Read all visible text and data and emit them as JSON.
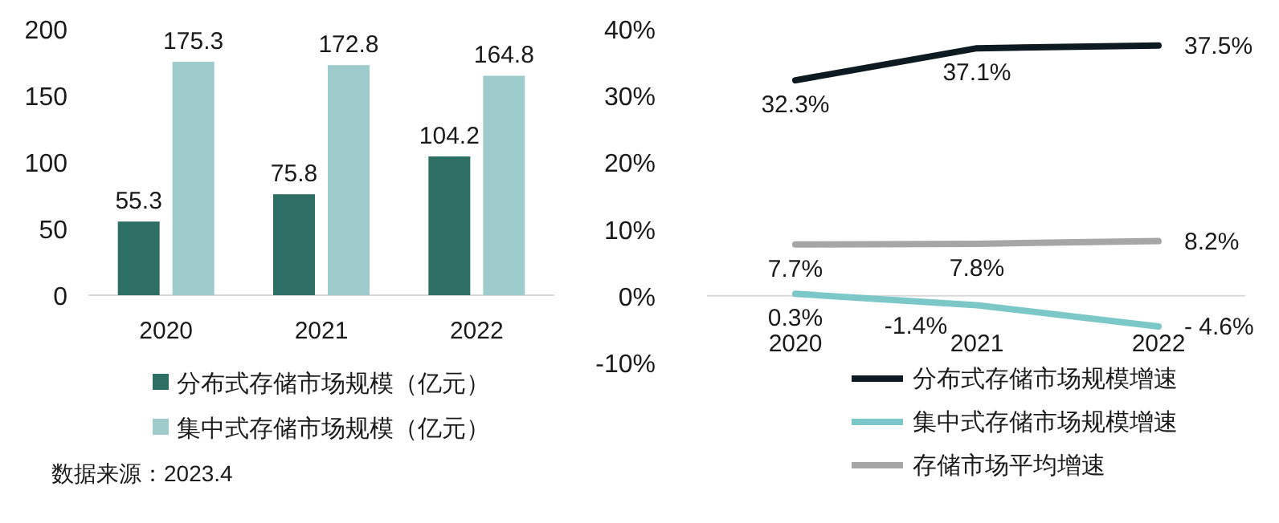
{
  "chart_data": [
    {
      "type": "bar",
      "categories": [
        "2020",
        "2021",
        "2022"
      ],
      "series": [
        {
          "name": "分布式存储市场规模（亿元）",
          "color": "#2e6f65",
          "values": [
            55.3,
            75.8,
            104.2
          ]
        },
        {
          "name": "集中式存储市场规模（亿元）",
          "color": "#9ecbcb",
          "values": [
            175.3,
            172.8,
            164.8
          ]
        }
      ],
      "ylim": [
        0,
        200
      ],
      "yticks": [
        0,
        50,
        100,
        150,
        200
      ],
      "data_labels": true,
      "legend": "bottom",
      "grid": false,
      "annotations": [
        "数据来源：2023.4"
      ]
    },
    {
      "type": "line",
      "categories": [
        "2020",
        "2021",
        "2022"
      ],
      "series": [
        {
          "name": "分布式存储市场规模增速",
          "color": "#0d1a22",
          "values": [
            32.3,
            37.1,
            37.5
          ],
          "value_labels": [
            "32.3%",
            "37.1%",
            "37.5%"
          ]
        },
        {
          "name": "集中式存储市场规模增速",
          "color": "#7cc8c8",
          "values": [
            0.3,
            -1.4,
            -4.6
          ],
          "value_labels": [
            "0.3%",
            "-1.4%",
            "- 4.6%"
          ]
        },
        {
          "name": "存储市场平均增速",
          "color": "#a6a6a6",
          "values": [
            7.7,
            7.8,
            8.2
          ],
          "value_labels": [
            "7.7%",
            "7.8%",
            "8.2%"
          ]
        }
      ],
      "ylim": [
        -10,
        40
      ],
      "yticks": [
        {
          "value": -10,
          "label": "-10%"
        },
        {
          "value": 0,
          "label": "0%"
        },
        {
          "value": 10,
          "label": "10%"
        },
        {
          "value": 20,
          "label": "20%"
        },
        {
          "value": 30,
          "label": "30%"
        },
        {
          "value": 40,
          "label": "40%"
        }
      ],
      "legend": "bottom",
      "grid": false,
      "marker": "none",
      "line_style": "solid"
    }
  ]
}
